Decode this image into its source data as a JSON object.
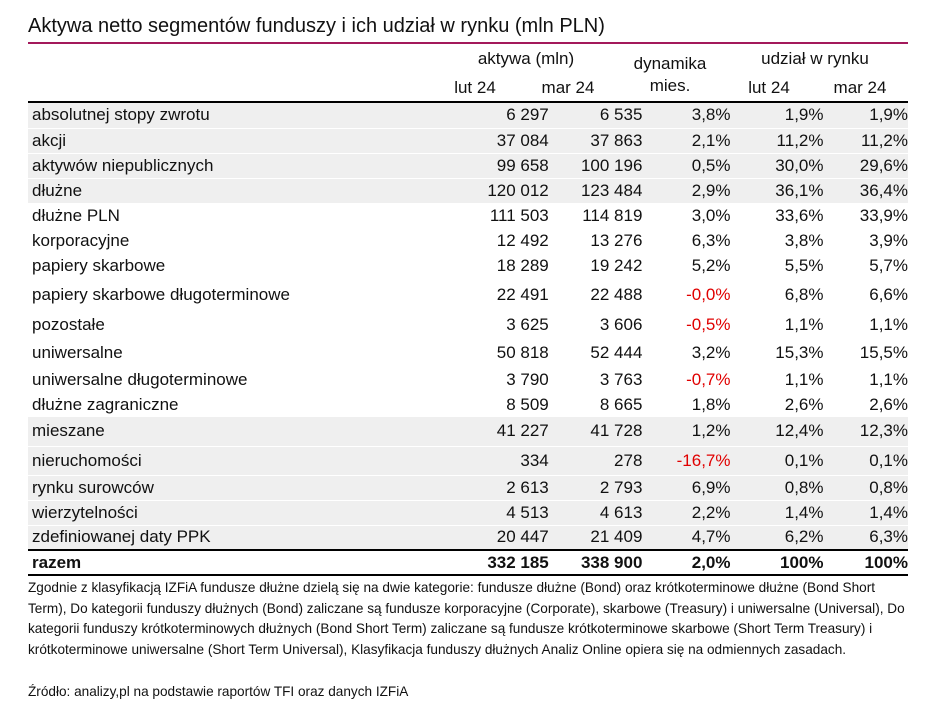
{
  "title": "Aktywa netto segmentów funduszy i ich udział w rynku (mln PLN)",
  "headers": {
    "assets": "aktywa (mln)",
    "dynamics_line1": "dynamika",
    "dynamics_line2": "mies.",
    "share": "udział w rynku",
    "period1": "lut 24",
    "period2": "mar 24",
    "period3": "lut 24",
    "period4": "mar 24"
  },
  "rows": [
    {
      "label": "absolutnej stopy zwrotu",
      "a1": "6 297",
      "a2": "6 535",
      "dyn": "3,8%",
      "s1": "1,9%",
      "s2": "1,9%"
    },
    {
      "label": "akcji",
      "a1": "37 084",
      "a2": "37 863",
      "dyn": "2,1%",
      "s1": "11,2%",
      "s2": "11,2%"
    },
    {
      "label": "aktywów niepublicznych",
      "a1": "99 658",
      "a2": "100 196",
      "dyn": "0,5%",
      "s1": "30,0%",
      "s2": "29,6%"
    },
    {
      "label": "dłużne",
      "a1": "120 012",
      "a2": "123 484",
      "dyn": "2,9%",
      "s1": "36,1%",
      "s2": "36,4%"
    },
    {
      "label": "dłużne PLN",
      "a1": "111 503",
      "a2": "114 819",
      "dyn": "3,0%",
      "s1": "33,6%",
      "s2": "33,9%"
    },
    {
      "label": "korporacyjne",
      "a1": "12 492",
      "a2": "13 276",
      "dyn": "6,3%",
      "s1": "3,8%",
      "s2": "3,9%"
    },
    {
      "label": "papiery skarbowe",
      "a1": "18 289",
      "a2": "19 242",
      "dyn": "5,2%",
      "s1": "5,5%",
      "s2": "5,7%"
    },
    {
      "label": "papiery skarbowe długoterminowe",
      "a1": "22 491",
      "a2": "22 488",
      "dyn": "-0,0%",
      "s1": "6,8%",
      "s2": "6,6%"
    },
    {
      "label": "pozostałe",
      "a1": "3 625",
      "a2": "3 606",
      "dyn": "-0,5%",
      "s1": "1,1%",
      "s2": "1,1%"
    },
    {
      "label": "uniwersalne",
      "a1": "50 818",
      "a2": "52 444",
      "dyn": "3,2%",
      "s1": "15,3%",
      "s2": "15,5%"
    },
    {
      "label": "uniwersalne długoterminowe",
      "a1": "3 790",
      "a2": "3 763",
      "dyn": "-0,7%",
      "s1": "1,1%",
      "s2": "1,1%"
    },
    {
      "label": "dłużne zagraniczne",
      "a1": "8 509",
      "a2": "8 665",
      "dyn": "1,8%",
      "s1": "2,6%",
      "s2": "2,6%"
    },
    {
      "label": "mieszane",
      "a1": "41 227",
      "a2": "41 728",
      "dyn": "1,2%",
      "s1": "12,4%",
      "s2": "12,3%"
    },
    {
      "label": "nieruchomości",
      "a1": "334",
      "a2": "278",
      "dyn": "-16,7%",
      "s1": "0,1%",
      "s2": "0,1%"
    },
    {
      "label": "rynku surowców",
      "a1": "2 613",
      "a2": "2 793",
      "dyn": "6,9%",
      "s1": "0,8%",
      "s2": "0,8%"
    },
    {
      "label": "wierzytelności",
      "a1": "4 513",
      "a2": "4 613",
      "dyn": "2,2%",
      "s1": "1,4%",
      "s2": "1,4%"
    },
    {
      "label": "zdefiniowanej daty PPK",
      "a1": "20 447",
      "a2": "21 409",
      "dyn": "4,7%",
      "s1": "6,2%",
      "s2": "6,3%"
    }
  ],
  "total": {
    "label": "razem",
    "a1": "332 185",
    "a2": "338 900",
    "dyn": "2,0%",
    "s1": "100%",
    "s2": "100%"
  },
  "note": "Zgodnie z klasyfikacją IZFiA fundusze dłużne dzielą się na dwie kategorie: fundusze dłużne (Bond) oraz krótkoterminowe dłużne (Bond Short Term), Do kategorii funduszy dłużnych (Bond) zaliczane są fundusze korporacyjne (Corporate), skarbowe (Treasury) i uniwersalne (Universal), Do kategorii funduszy krótkoterminowych dłużnych (Bond Short Term) zaliczane są fundusze krótkoterminowe skarbowe (Short Term Treasury) i krótkoterminowe uniwersalne (Short Term Universal), Klasyfikacja funduszy dłużnych Analiz Online opiera się na odmiennych zasadach.",
  "source": "Źródło: analizy,pl na podstawie raportów TFI oraz danych IZFiA",
  "colors": {
    "accent": "#a3195b",
    "negative": "#e00000",
    "band": "#efefef"
  }
}
